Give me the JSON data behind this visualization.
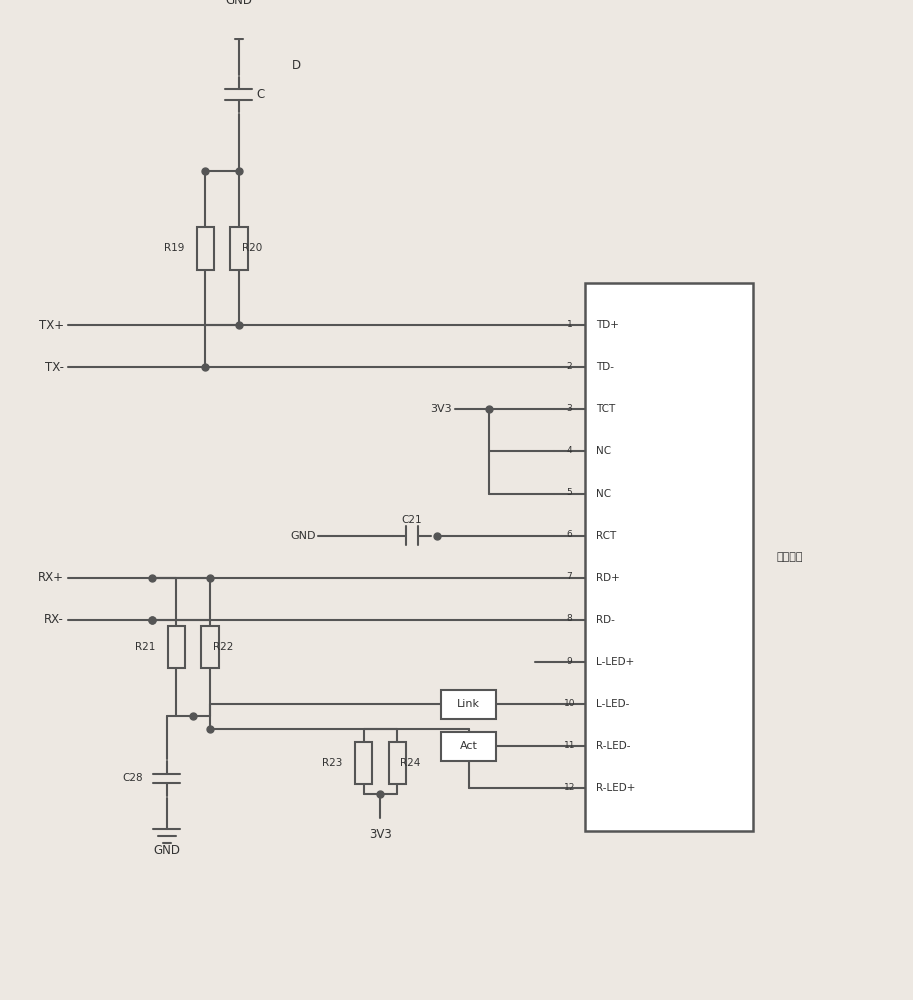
{
  "bg": "#ede8e2",
  "lc": "#555555",
  "tc": "#333333",
  "lw": 1.5,
  "fw": 9.13,
  "fh": 10.0,
  "pin_labels": [
    "TD+",
    "TD-",
    "TCT",
    "NC",
    "NC",
    "RCT",
    "RD+",
    "RD-",
    "L-LED+",
    "L-LED-",
    "R-LED-",
    "R-LED+"
  ],
  "ic_label": "变换芯片",
  "ic": [
    590,
    175,
    175,
    570
  ]
}
